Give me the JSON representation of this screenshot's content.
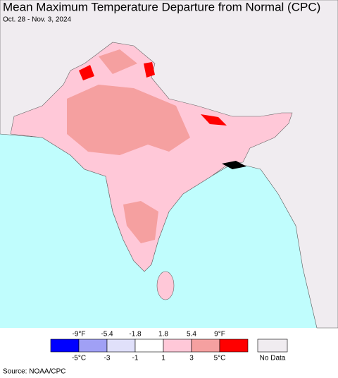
{
  "header": {
    "title": "Mean Maximum Temperature Departure from Normal (CPC)",
    "subtitle": "Oct. 28 - Nov. 3, 2024"
  },
  "legend": {
    "fahrenheit_labels": [
      "-9°F",
      "-5.4",
      "-1.8",
      "1.8",
      "5.4",
      "9°F"
    ],
    "celsius_labels": [
      "-5°C",
      "-3",
      "-1",
      "1",
      "3",
      "5°C"
    ],
    "colors": [
      "#0000ff",
      "#a0a0f5",
      "#e0e0fa",
      "#ffffff",
      "#ffc8d8",
      "#f5a0a0",
      "#ff0000"
    ],
    "no_data_label": "No Data",
    "no_data_color": "#f0ecf0"
  },
  "footer": {
    "source": "Source: NOAA/CPC"
  }
}
